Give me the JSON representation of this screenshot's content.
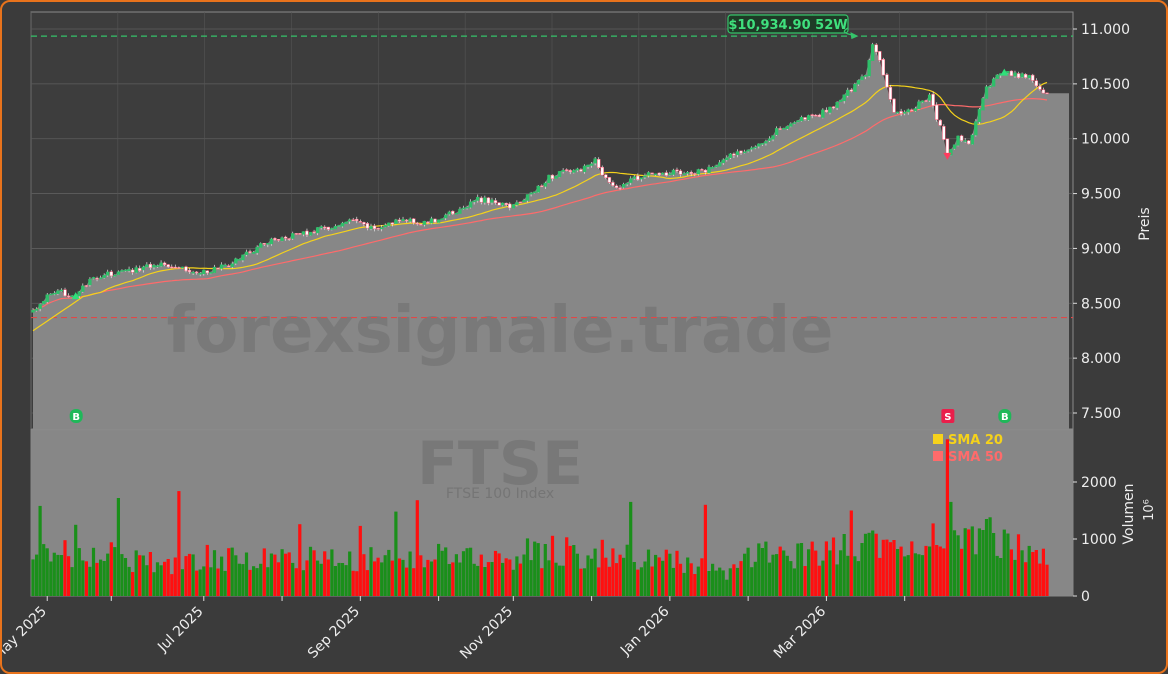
{
  "chart_data": {
    "type": "candlestick",
    "watermark": "forexsignale.trade",
    "symbol": "FTSE",
    "symbol_subtitle": "FTSE 100 Index",
    "price_axis_label": "Preis",
    "volume_axis_label": "Volumen",
    "volume_axis_unit": "10⁶",
    "price_ticks": [
      "7.500",
      "8.000",
      "8.500",
      "9.000",
      "9.500",
      "10.000",
      "10.500",
      "11.000"
    ],
    "price_tick_values": [
      7500,
      8000,
      8500,
      9000,
      9500,
      10000,
      10500,
      11000
    ],
    "volume_ticks": [
      "0",
      "1000",
      "2000"
    ],
    "volume_tick_values": [
      0,
      1000,
      2000
    ],
    "month_labels": [
      "May 2025",
      "Jul 2025",
      "Sep 2025",
      "Nov 2025",
      "Jan 2026",
      "Mar 2026"
    ],
    "month_label_index": [
      4,
      48,
      92,
      135,
      179,
      223
    ],
    "week_tick_index": [
      22,
      70,
      114,
      157,
      201,
      245
    ],
    "high_52w": {
      "label": "$10,934.90 52W",
      "value": 10934.9,
      "index": 232
    },
    "support_level": 8370,
    "legend": [
      {
        "name": "SMA 20",
        "color": "#f5d21b"
      },
      {
        "name": "SMA 50",
        "color": "#ff6b6b"
      }
    ],
    "signals": [
      {
        "type": "B",
        "index": 12
      },
      {
        "type": "S",
        "index": 257
      },
      {
        "type": "B",
        "index": 273
      }
    ],
    "price_anchors": [
      [
        0,
        8430
      ],
      [
        4,
        8560
      ],
      [
        8,
        8600
      ],
      [
        12,
        8570
      ],
      [
        16,
        8700
      ],
      [
        20,
        8760
      ],
      [
        25,
        8780
      ],
      [
        30,
        8820
      ],
      [
        35,
        8860
      ],
      [
        40,
        8850
      ],
      [
        45,
        8780
      ],
      [
        50,
        8800
      ],
      [
        55,
        8850
      ],
      [
        60,
        8950
      ],
      [
        65,
        9050
      ],
      [
        70,
        9100
      ],
      [
        75,
        9130
      ],
      [
        80,
        9170
      ],
      [
        85,
        9200
      ],
      [
        90,
        9250
      ],
      [
        95,
        9180
      ],
      [
        100,
        9220
      ],
      [
        105,
        9270
      ],
      [
        110,
        9230
      ],
      [
        115,
        9280
      ],
      [
        120,
        9350
      ],
      [
        125,
        9450
      ],
      [
        130,
        9420
      ],
      [
        135,
        9380
      ],
      [
        140,
        9500
      ],
      [
        145,
        9650
      ],
      [
        150,
        9700
      ],
      [
        155,
        9730
      ],
      [
        158,
        9800
      ],
      [
        161,
        9620
      ],
      [
        165,
        9560
      ],
      [
        170,
        9650
      ],
      [
        175,
        9680
      ],
      [
        180,
        9690
      ],
      [
        185,
        9680
      ],
      [
        190,
        9720
      ],
      [
        195,
        9830
      ],
      [
        200,
        9900
      ],
      [
        205,
        9970
      ],
      [
        210,
        10100
      ],
      [
        215,
        10170
      ],
      [
        220,
        10200
      ],
      [
        225,
        10300
      ],
      [
        230,
        10450
      ],
      [
        234,
        10600
      ],
      [
        236,
        10850
      ],
      [
        238,
        10700
      ],
      [
        240,
        10450
      ],
      [
        242,
        10250
      ],
      [
        245,
        10250
      ],
      [
        248,
        10300
      ],
      [
        252,
        10380
      ],
      [
        255,
        10100
      ],
      [
        257,
        9850
      ],
      [
        260,
        10000
      ],
      [
        263,
        9950
      ],
      [
        266,
        10250
      ],
      [
        268,
        10450
      ],
      [
        272,
        10600
      ],
      [
        276,
        10580
      ],
      [
        280,
        10560
      ],
      [
        283,
        10450
      ],
      [
        285,
        10400
      ]
    ],
    "volume_anchors": [
      [
        0,
        700
      ],
      [
        10,
        820
      ],
      [
        20,
        760
      ],
      [
        30,
        680
      ],
      [
        40,
        620
      ],
      [
        50,
        700
      ],
      [
        60,
        660
      ],
      [
        70,
        700
      ],
      [
        80,
        720
      ],
      [
        90,
        650
      ],
      [
        100,
        700
      ],
      [
        110,
        680
      ],
      [
        120,
        760
      ],
      [
        130,
        700
      ],
      [
        140,
        800
      ],
      [
        150,
        820
      ],
      [
        160,
        760
      ],
      [
        170,
        700
      ],
      [
        180,
        640
      ],
      [
        190,
        560
      ],
      [
        195,
        300
      ],
      [
        200,
        720
      ],
      [
        210,
        760
      ],
      [
        220,
        800
      ],
      [
        230,
        900
      ],
      [
        240,
        1000
      ],
      [
        250,
        1050
      ],
      [
        257,
        1400
      ],
      [
        265,
        1000
      ],
      [
        275,
        950
      ],
      [
        285,
        850
      ]
    ],
    "volume_spikes": [
      [
        2,
        1580
      ],
      [
        12,
        1250
      ],
      [
        24,
        1720
      ],
      [
        41,
        1840
      ],
      [
        75,
        1260
      ],
      [
        92,
        1230
      ],
      [
        102,
        1480
      ],
      [
        108,
        1680
      ],
      [
        168,
        1650
      ],
      [
        189,
        1600
      ],
      [
        230,
        1500
      ],
      [
        257,
        2750
      ],
      [
        258,
        1650
      ],
      [
        268,
        1350
      ],
      [
        269,
        1380
      ]
    ],
    "bar_count": 286
  }
}
